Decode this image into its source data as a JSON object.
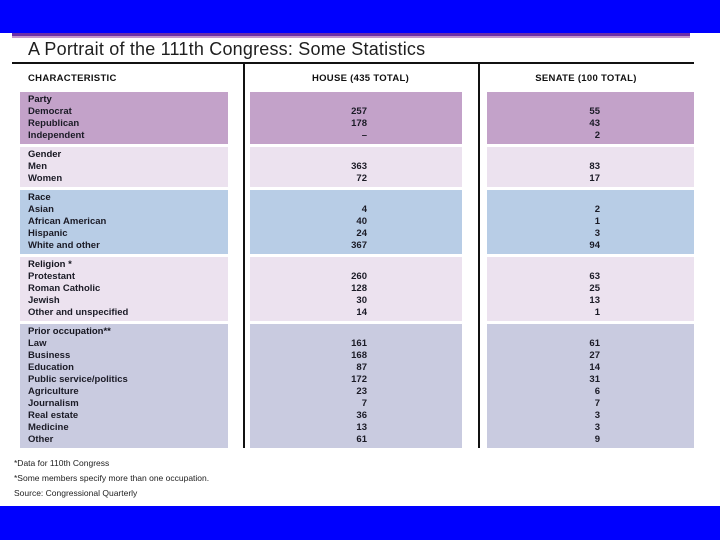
{
  "title": "A Portrait of the 111th Congress: Some Statistics",
  "columns": [
    "CHARACTERISTIC",
    "HOUSE (435 TOTAL)",
    "SENATE (100 TOTAL)"
  ],
  "table": {
    "sections": [
      {
        "header": "Party",
        "bg": "#c3a2c9",
        "rows": [
          {
            "label": "Democrat",
            "house": "257",
            "senate": "55"
          },
          {
            "label": "Republican",
            "house": "178",
            "senate": "43"
          },
          {
            "label": "Independent",
            "house": "–",
            "senate": "2"
          }
        ]
      },
      {
        "header": "Gender",
        "bg": "#ece2ef",
        "rows": [
          {
            "label": "Men",
            "house": "363",
            "senate": "83"
          },
          {
            "label": "Women",
            "house": "72",
            "senate": "17"
          }
        ]
      },
      {
        "header": "Race",
        "bg": "#b8cde6",
        "rows": [
          {
            "label": "Asian",
            "house": "4",
            "senate": "2"
          },
          {
            "label": "African American",
            "house": "40",
            "senate": "1"
          },
          {
            "label": "Hispanic",
            "house": "24",
            "senate": "3"
          },
          {
            "label": "White and other",
            "house": "367",
            "senate": "94"
          }
        ]
      },
      {
        "header": "Religion *",
        "bg": "#ece2ef",
        "rows": [
          {
            "label": "Protestant",
            "house": "260",
            "senate": "63"
          },
          {
            "label": "Roman Catholic",
            "house": "128",
            "senate": "25"
          },
          {
            "label": "Jewish",
            "house": "30",
            "senate": "13"
          },
          {
            "label": "Other and unspecified",
            "house": "14",
            "senate": "1"
          }
        ]
      },
      {
        "header": "Prior occupation**",
        "bg": "#c9cbe0",
        "rows": [
          {
            "label": "Law",
            "house": "161",
            "senate": "61"
          },
          {
            "label": "Business",
            "house": "168",
            "senate": "27"
          },
          {
            "label": "Education",
            "house": "87",
            "senate": "14"
          },
          {
            "label": "Public service/politics",
            "house": "172",
            "senate": "31"
          },
          {
            "label": "Agriculture",
            "house": "23",
            "senate": "6"
          },
          {
            "label": "Journalism",
            "house": "7",
            "senate": "7"
          },
          {
            "label": "Real estate",
            "house": "36",
            "senate": "3"
          },
          {
            "label": "Medicine",
            "house": "13",
            "senate": "3"
          },
          {
            "label": "Other",
            "house": "61",
            "senate": "9"
          }
        ]
      }
    ]
  },
  "footnotes": [
    "*Data for 110th Congress",
    "*Some members specify more than one occupation.",
    "Source: Congressional Quarterly"
  ],
  "colors": {
    "frame_blue": "#0000fe",
    "accent_dark_purple": "#6b2fa8",
    "accent_light_purple": "#c495cd",
    "rule_black": "#111111"
  }
}
